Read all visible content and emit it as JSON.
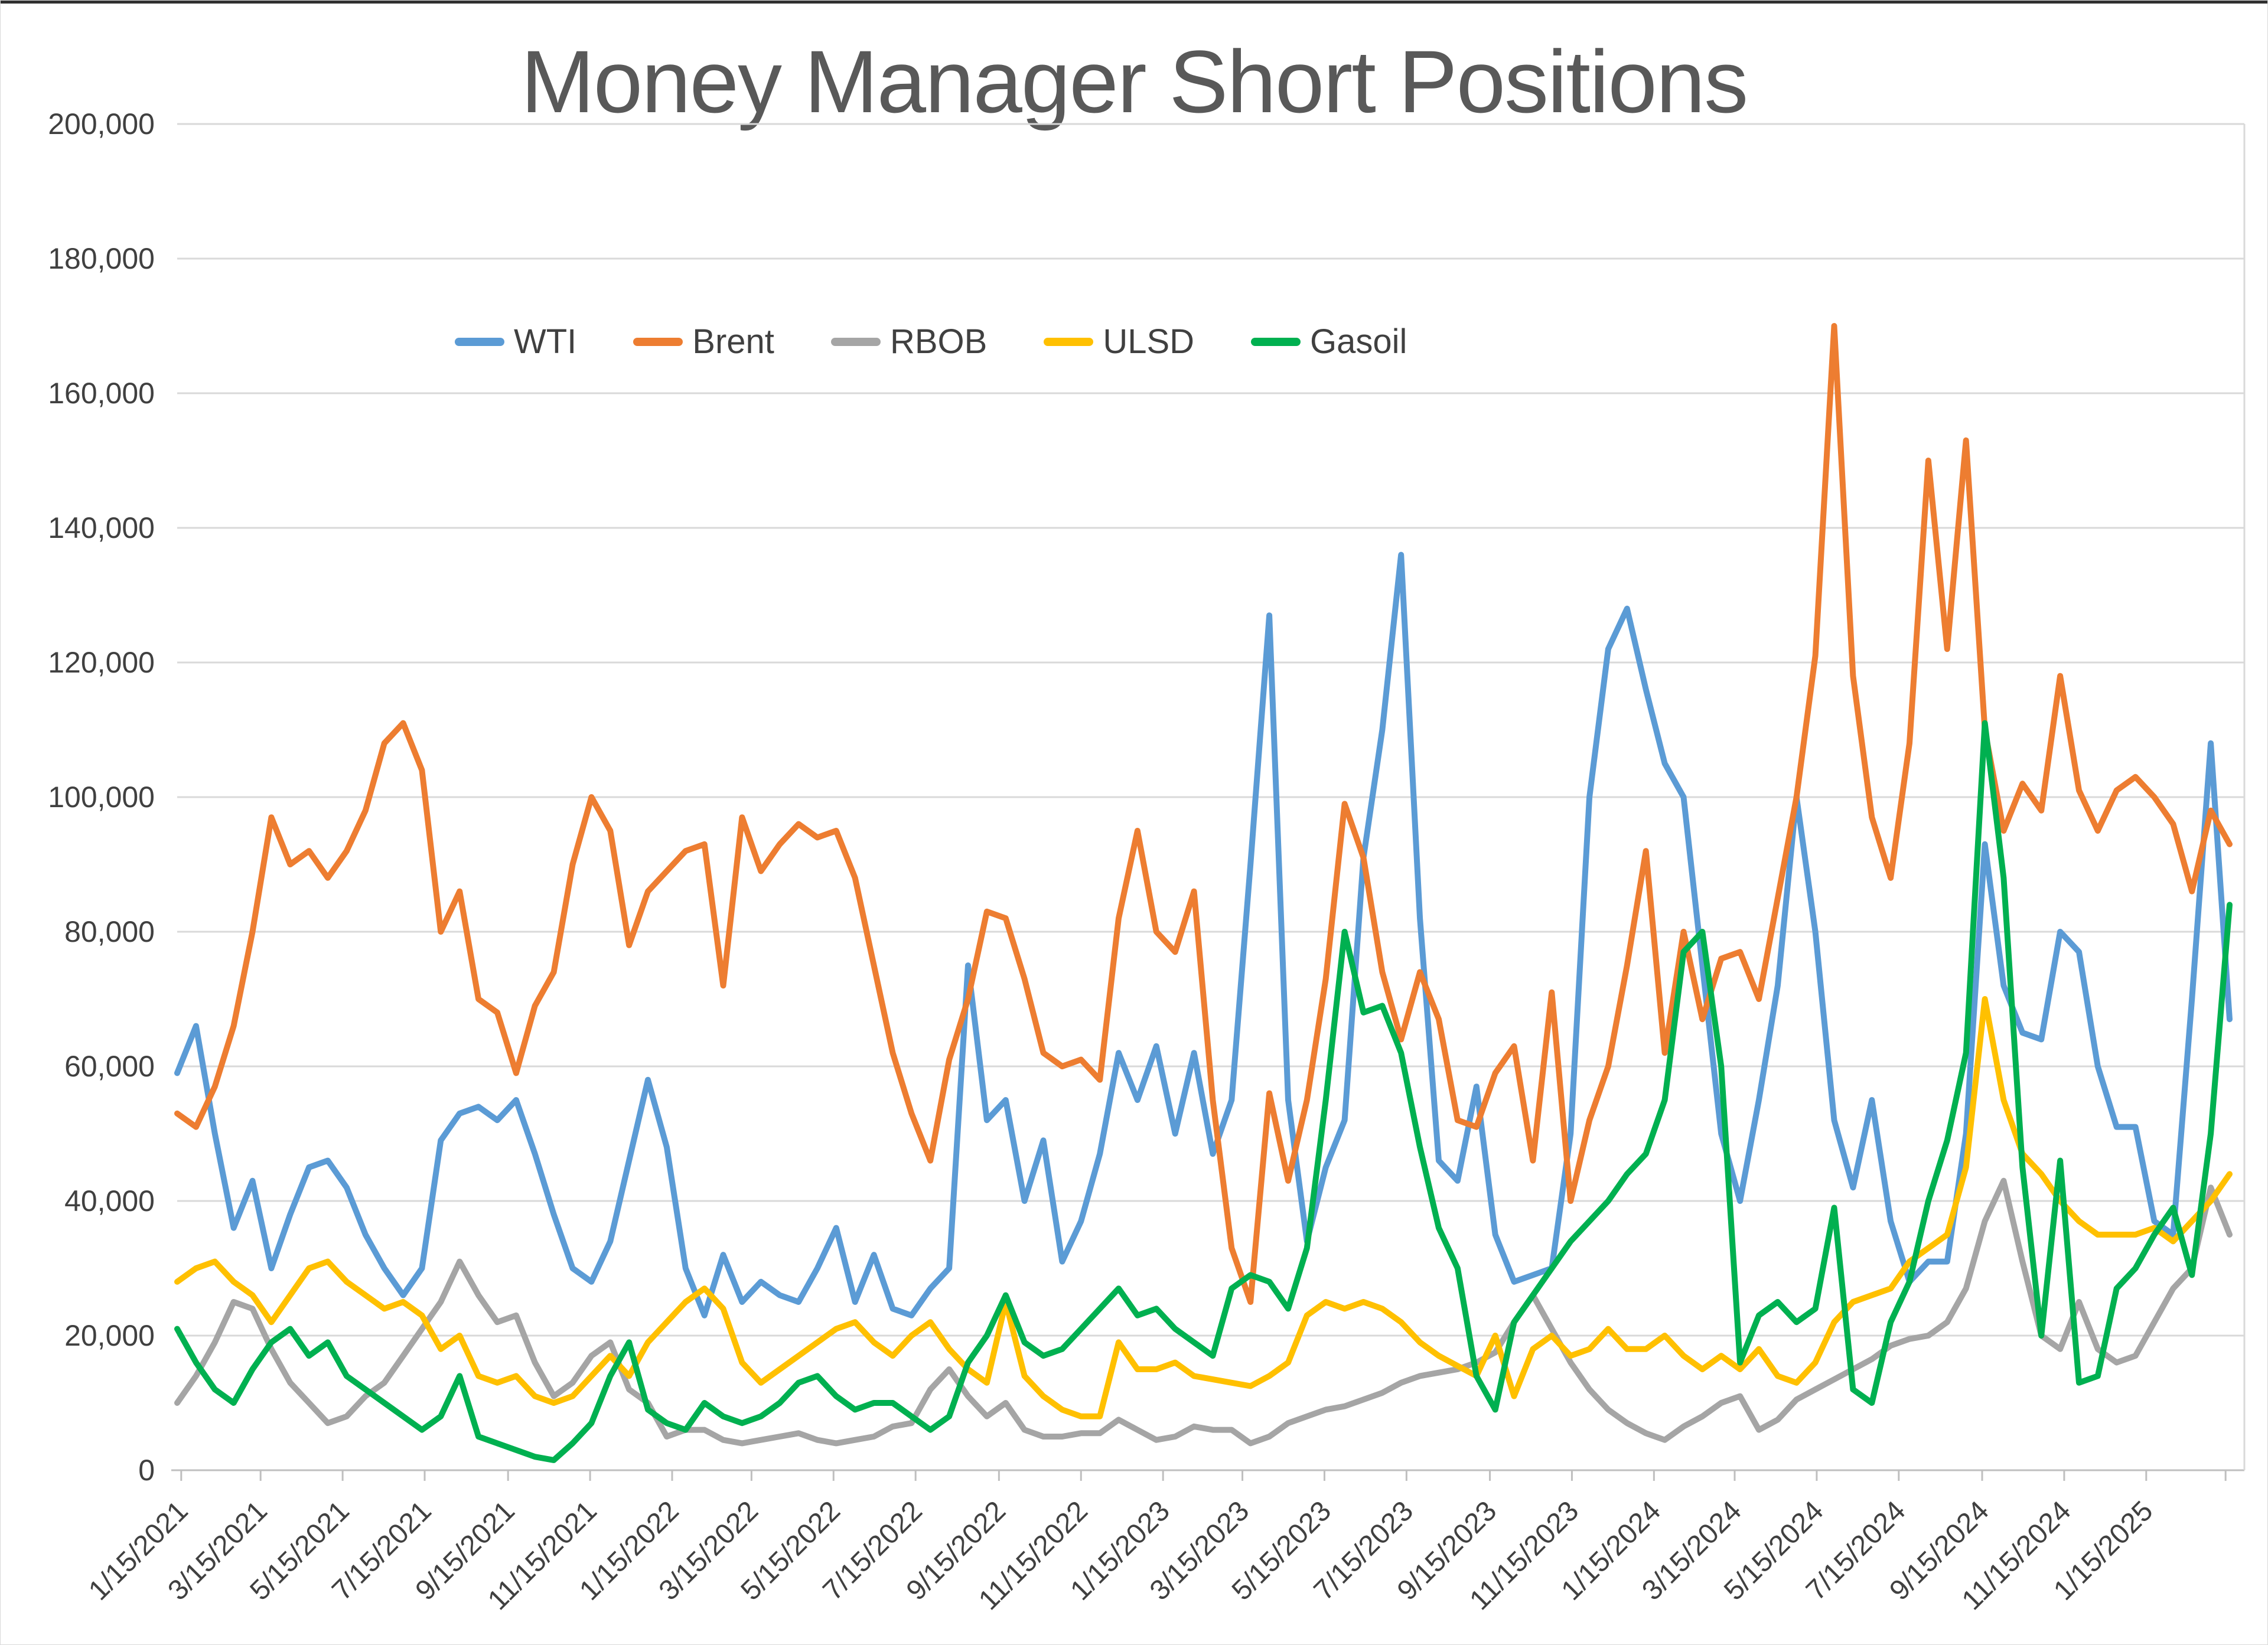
{
  "page": {
    "window_title": "Money Manager Short Positions chart"
  },
  "chart_data": {
    "type": "line",
    "title": "Money Manager Short Positions",
    "xlabel": "",
    "ylabel": "",
    "grid": true,
    "legend_position": "top",
    "ylim": [
      0,
      200000
    ],
    "ytick_step": 20000,
    "ytick_values": [
      0,
      20000,
      40000,
      60000,
      80000,
      100000,
      120000,
      140000,
      160000,
      180000,
      200000
    ],
    "ytick_labels": [
      "0",
      "20,000",
      "40,000",
      "60,000",
      "80,000",
      "100,000",
      "120,000",
      "140,000",
      "160,000",
      "180,000",
      "200,000"
    ],
    "xtick_labels": [
      "1/15/2021",
      "3/15/2021",
      "5/15/2021",
      "7/15/2021",
      "9/15/2021",
      "11/15/2021",
      "1/15/2022",
      "3/15/2022",
      "5/15/2022",
      "7/15/2022",
      "9/15/2022",
      "11/15/2022",
      "1/15/2023",
      "3/15/2023",
      "5/15/2023",
      "7/15/2023",
      "9/15/2023",
      "11/15/2023",
      "1/15/2024",
      "3/15/2024",
      "5/15/2024",
      "7/15/2024",
      "9/15/2024",
      "11/15/2024",
      "1/15/2025"
    ],
    "dates": [
      "1/12/2021",
      "1/26/2021",
      "2/9/2021",
      "2/23/2021",
      "3/9/2021",
      "3/23/2021",
      "4/6/2021",
      "4/20/2021",
      "5/4/2021",
      "5/18/2021",
      "6/1/2021",
      "6/15/2021",
      "6/29/2021",
      "7/13/2021",
      "7/27/2021",
      "8/10/2021",
      "8/24/2021",
      "9/7/2021",
      "9/21/2021",
      "10/5/2021",
      "10/19/2021",
      "11/2/2021",
      "11/16/2021",
      "11/30/2021",
      "12/14/2021",
      "12/28/2021",
      "1/11/2022",
      "1/25/2022",
      "2/8/2022",
      "2/22/2022",
      "3/8/2022",
      "3/22/2022",
      "4/5/2022",
      "4/19/2022",
      "5/3/2022",
      "5/17/2022",
      "5/31/2022",
      "6/14/2022",
      "6/28/2022",
      "7/12/2022",
      "7/26/2022",
      "8/9/2022",
      "8/23/2022",
      "9/6/2022",
      "9/20/2022",
      "10/4/2022",
      "10/18/2022",
      "11/1/2022",
      "11/15/2022",
      "11/29/2022",
      "12/13/2022",
      "12/27/2022",
      "1/10/2023",
      "1/24/2023",
      "2/7/2023",
      "2/21/2023",
      "3/7/2023",
      "3/21/2023",
      "4/4/2023",
      "4/18/2023",
      "5/2/2023",
      "5/16/2023",
      "5/30/2023",
      "6/13/2023",
      "6/27/2023",
      "7/11/2023",
      "7/25/2023",
      "8/8/2023",
      "8/22/2023",
      "9/5/2023",
      "9/19/2023",
      "10/3/2023",
      "10/17/2023",
      "10/31/2023",
      "11/14/2023",
      "11/28/2023",
      "12/12/2023",
      "12/26/2023",
      "1/9/2024",
      "1/23/2024",
      "2/6/2024",
      "2/20/2024",
      "3/5/2024",
      "3/19/2024",
      "4/2/2024",
      "4/16/2024",
      "4/30/2024",
      "5/14/2024",
      "5/28/2024",
      "6/11/2024",
      "6/25/2024",
      "7/9/2024",
      "7/23/2024",
      "8/6/2024",
      "8/20/2024",
      "9/3/2024",
      "9/17/2024",
      "10/1/2024",
      "10/15/2024",
      "10/29/2024",
      "11/12/2024",
      "11/26/2024",
      "12/10/2024",
      "12/24/2024",
      "1/7/2025",
      "1/21/2025",
      "2/4/2025",
      "2/18/2025",
      "3/4/2025",
      "3/18/2025"
    ],
    "series": [
      {
        "name": "WTI",
        "color": "#5B9BD5",
        "values": [
          59000,
          66000,
          50000,
          36000,
          43000,
          30000,
          38000,
          45000,
          46000,
          42000,
          35000,
          30000,
          26000,
          30000,
          49000,
          53000,
          54000,
          52000,
          55000,
          47000,
          38000,
          30000,
          28000,
          34000,
          46000,
          58000,
          48000,
          30000,
          23000,
          32000,
          25000,
          28000,
          26000,
          25000,
          30000,
          36000,
          25000,
          32000,
          24000,
          23000,
          27000,
          30000,
          75000,
          52000,
          55000,
          40000,
          49000,
          31000,
          37000,
          47000,
          62000,
          55000,
          63000,
          50000,
          62000,
          47000,
          55000,
          90000,
          127000,
          55000,
          34000,
          45000,
          52000,
          91000,
          110000,
          136000,
          82000,
          46000,
          43000,
          57000,
          35000,
          28000,
          29000,
          30000,
          50000,
          100000,
          122000,
          128000,
          116000,
          105000,
          100000,
          75000,
          50000,
          40000,
          55000,
          72000,
          100000,
          80000,
          52000,
          42000,
          55000,
          37000,
          28000,
          31000,
          31000,
          50000,
          93000,
          72000,
          65000,
          64000,
          80000,
          77000,
          60000,
          51000,
          51000,
          37000,
          35000,
          70000,
          108000,
          67000
        ]
      },
      {
        "name": "Brent",
        "color": "#ED7D31",
        "values": [
          53000,
          51000,
          57000,
          66000,
          80000,
          97000,
          90000,
          92000,
          88000,
          92000,
          98000,
          108000,
          111000,
          104000,
          80000,
          86000,
          70000,
          68000,
          59000,
          69000,
          74000,
          90000,
          100000,
          95000,
          78000,
          86000,
          89000,
          92000,
          93000,
          72000,
          97000,
          89000,
          93000,
          96000,
          94000,
          95000,
          88000,
          75000,
          62000,
          53000,
          46000,
          61000,
          70000,
          83000,
          82000,
          73000,
          62000,
          60000,
          61000,
          58000,
          82000,
          95000,
          80000,
          77000,
          86000,
          55000,
          33000,
          25000,
          56000,
          43000,
          55000,
          73000,
          99000,
          91000,
          74000,
          64000,
          74000,
          67000,
          52000,
          51000,
          59000,
          63000,
          46000,
          71000,
          40000,
          52000,
          60000,
          75000,
          92000,
          62000,
          80000,
          67000,
          76000,
          77000,
          70000,
          85000,
          100000,
          121000,
          170000,
          118000,
          97000,
          88000,
          108000,
          150000,
          122000,
          153000,
          110000,
          95000,
          102000,
          98000,
          118000,
          101000,
          95000,
          101000,
          103000,
          100000,
          96000,
          86000,
          98000,
          93000
        ]
      },
      {
        "name": "RBOB",
        "color": "#A5A5A5",
        "values": [
          10000,
          14000,
          19000,
          25000,
          24000,
          18000,
          13000,
          10000,
          7000,
          8000,
          11000,
          13000,
          17000,
          21000,
          25000,
          31000,
          26000,
          22000,
          23000,
          16000,
          11000,
          13000,
          17000,
          19000,
          12000,
          10000,
          5000,
          6000,
          6000,
          4500,
          4000,
          4500,
          5000,
          5500,
          4500,
          4000,
          4500,
          5000,
          6500,
          7000,
          12000,
          15000,
          11000,
          8000,
          10000,
          6000,
          5000,
          5000,
          5500,
          5500,
          7500,
          6000,
          4500,
          5000,
          6500,
          6000,
          6000,
          4000,
          5000,
          7000,
          8000,
          9000,
          9500,
          10500,
          11500,
          13000,
          14000,
          14500,
          15000,
          16000,
          17500,
          22000,
          26000,
          21000,
          16000,
          12000,
          9000,
          7000,
          5500,
          4500,
          6500,
          8000,
          10000,
          11000,
          6000,
          7500,
          10500,
          12000,
          13500,
          15000,
          16500,
          18500,
          19500,
          20000,
          22000,
          27000,
          37000,
          43000,
          31000,
          20000,
          18000,
          25000,
          18000,
          16000,
          17000,
          22000,
          27000,
          30000,
          42000,
          35000
        ]
      },
      {
        "name": "ULSD",
        "color": "#FFC000",
        "values": [
          28000,
          30000,
          31000,
          28000,
          26000,
          22000,
          26000,
          30000,
          31000,
          28000,
          26000,
          24000,
          25000,
          23000,
          18000,
          20000,
          14000,
          13000,
          14000,
          11000,
          10000,
          11000,
          14000,
          17000,
          14000,
          19000,
          22000,
          25000,
          27000,
          24000,
          16000,
          13000,
          15000,
          17000,
          19000,
          21000,
          22000,
          19000,
          17000,
          20000,
          22000,
          18000,
          15000,
          13000,
          25000,
          14000,
          11000,
          9000,
          8000,
          8000,
          19000,
          15000,
          15000,
          16000,
          14000,
          13500,
          13000,
          12500,
          14000,
          16000,
          23000,
          25000,
          24000,
          25000,
          24000,
          22000,
          19000,
          17000,
          15500,
          14000,
          20000,
          11000,
          18000,
          20000,
          17000,
          18000,
          21000,
          18000,
          18000,
          20000,
          17000,
          15000,
          17000,
          15000,
          18000,
          14000,
          13000,
          16000,
          22000,
          25000,
          26000,
          27000,
          31000,
          33000,
          35000,
          45000,
          70000,
          55000,
          47000,
          44000,
          40000,
          37000,
          35000,
          35000,
          35000,
          36000,
          34000,
          37000,
          40000,
          44000
        ]
      },
      {
        "name": "Gasoil",
        "color": "#00B050",
        "values": [
          21000,
          16000,
          12000,
          10000,
          15000,
          19000,
          21000,
          17000,
          19000,
          14000,
          12000,
          10000,
          8000,
          6000,
          8000,
          14000,
          5000,
          4000,
          3000,
          2000,
          1500,
          4000,
          7000,
          14000,
          19000,
          9000,
          7000,
          6000,
          10000,
          8000,
          7000,
          8000,
          10000,
          13000,
          14000,
          11000,
          9000,
          10000,
          10000,
          8000,
          6000,
          8000,
          16000,
          20000,
          26000,
          19000,
          17000,
          18000,
          21000,
          24000,
          27000,
          23000,
          24000,
          21000,
          19000,
          17000,
          27000,
          29000,
          28000,
          24000,
          33000,
          55000,
          80000,
          68000,
          69000,
          62000,
          48000,
          36000,
          30000,
          14000,
          9000,
          22000,
          26000,
          30000,
          34000,
          37000,
          40000,
          44000,
          47000,
          55000,
          77000,
          80000,
          60000,
          16000,
          23000,
          25000,
          22000,
          24000,
          39000,
          12000,
          10000,
          22000,
          28000,
          40000,
          49000,
          62000,
          111000,
          88000,
          45000,
          20000,
          46000,
          13000,
          14000,
          27000,
          30000,
          35000,
          39000,
          29000,
          50000,
          84000
        ]
      }
    ],
    "layout": {
      "plot_left": 300,
      "plot_right": 3800,
      "data_right": 3775,
      "y_zero": 2490,
      "y_top": 210,
      "grid_color": "#D9D9D9",
      "axis_color": "#BFBFBF",
      "tick_label_color": "#404040",
      "title_color": "#595959"
    }
  }
}
